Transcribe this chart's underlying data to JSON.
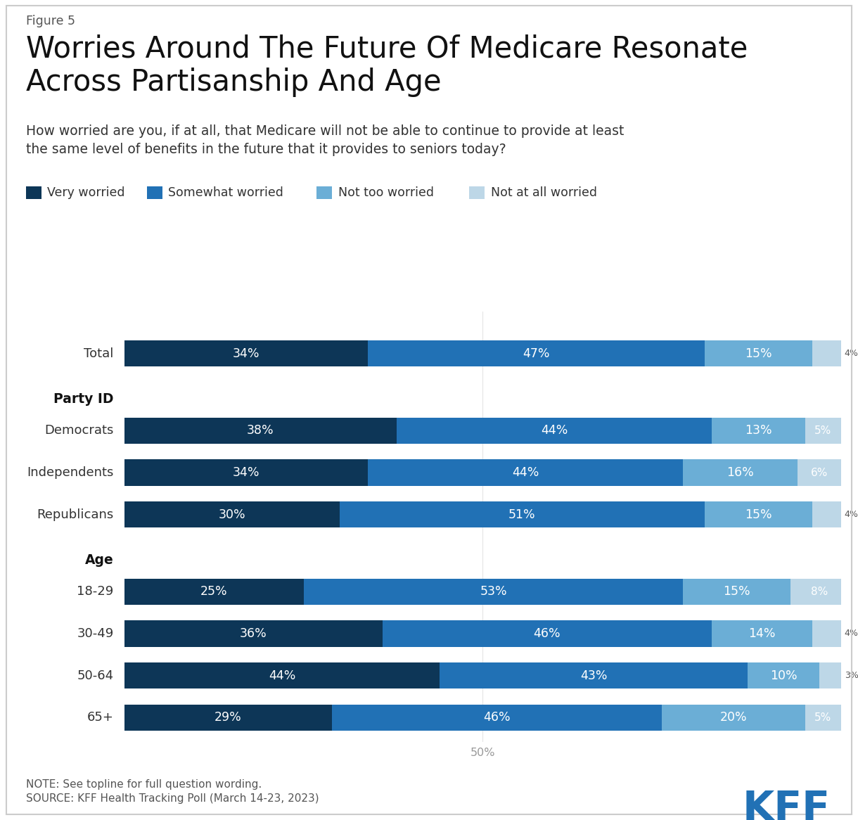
{
  "figure_label": "Figure 5",
  "title": "Worries Around The Future Of Medicare Resonate\nAcross Partisanship And Age",
  "subtitle": "How worried are you, if at all, that Medicare will not be able to continue to provide at least\nthe same level of benefits in the future that it provides to seniors today?",
  "legend_labels": [
    "Very worried",
    "Somewhat worried",
    "Not too worried",
    "Not at all worried"
  ],
  "colors": [
    "#0d3657",
    "#2171b5",
    "#6baed6",
    "#bdd7e7"
  ],
  "categories": [
    "Total",
    "Democrats",
    "Independents",
    "Republicans",
    "18-29",
    "30-49",
    "50-64",
    "65+"
  ],
  "data": {
    "Total": [
      34,
      47,
      15,
      4
    ],
    "Democrats": [
      38,
      44,
      13,
      5
    ],
    "Independents": [
      34,
      44,
      16,
      6
    ],
    "Republicans": [
      30,
      51,
      15,
      4
    ],
    "18-29": [
      25,
      53,
      15,
      8
    ],
    "30-49": [
      36,
      46,
      14,
      4
    ],
    "50-64": [
      44,
      43,
      10,
      3
    ],
    "65+": [
      29,
      46,
      20,
      5
    ]
  },
  "y_positions": {
    "Total": 10.0,
    "Democrats": 7.8,
    "Independents": 6.6,
    "Republicans": 5.4,
    "18-29": 3.2,
    "30-49": 2.0,
    "50-64": 0.8,
    "65+": -0.4
  },
  "section_headers": [
    {
      "label": "Party ID",
      "y": 8.7
    },
    {
      "label": "Age",
      "y": 4.1
    }
  ],
  "note_text1": "NOTE: See topline for full question wording.",
  "note_text2": "SOURCE: KFF Health Tracking Poll (March 14-23, 2023)",
  "background_color": "#ffffff",
  "bar_height": 0.75,
  "kff_color": "#2171b5",
  "border_color": "#cccccc",
  "text_color_cat": "#333333",
  "text_color_section": "#111111",
  "text_color_note": "#555555",
  "tick_label_color": "#999999",
  "show_last_segment_label_threshold": 5
}
